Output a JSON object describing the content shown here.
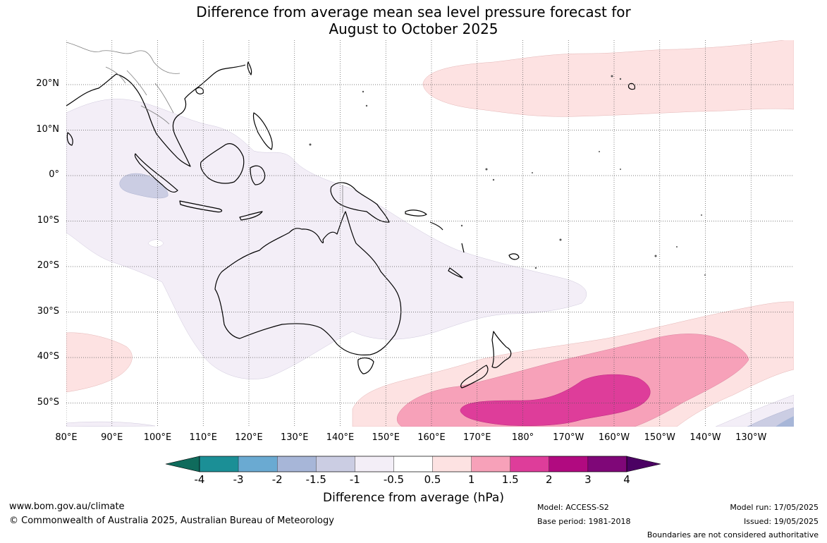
{
  "title": {
    "line1": "Difference from average mean sea level pressure forecast for",
    "line2": "August to October 2025"
  },
  "map": {
    "lat_labels": [
      "20°N",
      "10°N",
      "0°",
      "10°S",
      "20°S",
      "30°S",
      "40°S",
      "50°S"
    ],
    "lon_labels": [
      "80°E",
      "90°E",
      "100°E",
      "110°E",
      "120°E",
      "130°E",
      "140°E",
      "150°E",
      "160°E",
      "170°E",
      "180°",
      "170°W",
      "160°W",
      "150°W",
      "140°W",
      "130°W"
    ],
    "lat_values": [
      20,
      10,
      0,
      -10,
      -20,
      -30,
      -40,
      -50
    ],
    "lon_values": [
      80,
      90,
      100,
      110,
      120,
      130,
      140,
      150,
      160,
      170,
      180,
      190,
      200,
      210,
      220,
      230
    ]
  },
  "colorbar": {
    "labels": [
      "-4",
      "-3",
      "-2",
      "-1.5",
      "-1",
      "-0.5",
      "0.5",
      "1",
      "1.5",
      "2",
      "3",
      "4"
    ],
    "colors": [
      "#0f6b5c",
      "#1b8f96",
      "#6aaad2",
      "#a7b6d8",
      "#cbcde3",
      "#f3eef7",
      "#ffffff",
      "#fde2e2",
      "#f7a1b9",
      "#de3d9a",
      "#b10a80",
      "#7f0778",
      "#4b0163"
    ],
    "title": "Difference from average (hPa)"
  },
  "footer": {
    "url": "www.bom.gov.au/climate",
    "copyright": "© Commonwealth of Australia 2025, Australian Bureau of Meteorology",
    "model": "Model: ACCESS-S2",
    "base_period": "Base period: 1981-2018",
    "model_run": "Model run: 17/05/2025",
    "issued": "Issued: 19/05/2025",
    "boundaries": "Boundaries are not considered authoritative"
  }
}
